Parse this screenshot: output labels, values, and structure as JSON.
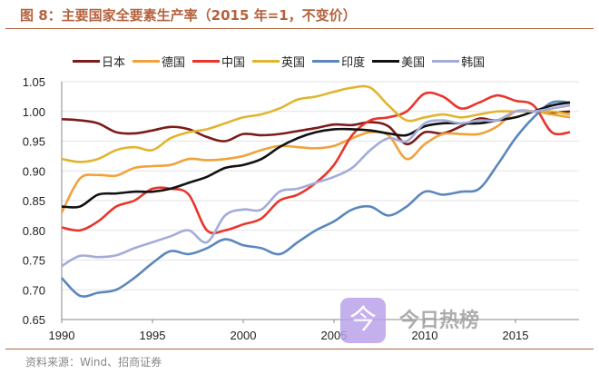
{
  "header": {
    "title": "图 8：主要国家全要素生产率（2015 年=1，不变价）"
  },
  "footer": {
    "source": "资料来源：Wind、招商证券"
  },
  "watermark": {
    "text": "今日热榜",
    "logo_char": "今"
  },
  "chart_data": {
    "type": "line",
    "title": "图 8：主要国家全要素生产率（2015 年=1，不变价）",
    "xlabel": "",
    "ylabel": "",
    "xlim": [
      1990,
      2018.5
    ],
    "ylim": [
      0.65,
      1.05
    ],
    "xticks": [
      "1990",
      "1995",
      "2000",
      "2005",
      "2010",
      "2015"
    ],
    "yticks": [
      "0.65",
      "0.70",
      "0.75",
      "0.80",
      "0.85",
      "0.90",
      "0.95",
      "1.00",
      "1.05"
    ],
    "legend_position": "top",
    "x": [
      1990,
      1991,
      1992,
      1993,
      1994,
      1995,
      1996,
      1997,
      1998,
      1999,
      2000,
      2001,
      2002,
      2003,
      2004,
      2005,
      2006,
      2007,
      2008,
      2009,
      2010,
      2011,
      2012,
      2013,
      2014,
      2015,
      2016,
      2017,
      2018
    ],
    "series": [
      {
        "name": "日本",
        "color": "#7b1c1c",
        "values": [
          0.987,
          0.985,
          0.98,
          0.965,
          0.963,
          0.968,
          0.974,
          0.97,
          0.957,
          0.95,
          0.962,
          0.96,
          0.962,
          0.967,
          0.972,
          0.978,
          0.977,
          0.982,
          0.975,
          0.945,
          0.965,
          0.963,
          0.975,
          0.988,
          0.985,
          1.0,
          1.0,
          0.998,
          1.0
        ]
      },
      {
        "name": "德国",
        "color": "#f0a23c",
        "values": [
          0.83,
          0.887,
          0.893,
          0.892,
          0.905,
          0.908,
          0.91,
          0.92,
          0.918,
          0.92,
          0.925,
          0.935,
          0.942,
          0.94,
          0.938,
          0.942,
          0.955,
          0.965,
          0.96,
          0.92,
          0.945,
          0.962,
          0.962,
          0.962,
          0.975,
          1.0,
          1.0,
          0.995,
          0.99
        ]
      },
      {
        "name": "中国",
        "color": "#e8362b",
        "values": [
          0.805,
          0.8,
          0.815,
          0.84,
          0.85,
          0.87,
          0.87,
          0.86,
          0.8,
          0.8,
          0.81,
          0.82,
          0.85,
          0.86,
          0.88,
          0.91,
          0.96,
          0.985,
          0.99,
          1.0,
          1.03,
          1.025,
          1.005,
          1.015,
          1.027,
          1.018,
          1.01,
          0.965,
          0.965
        ]
      },
      {
        "name": "英国",
        "color": "#e0b530",
        "values": [
          0.92,
          0.915,
          0.92,
          0.935,
          0.94,
          0.935,
          0.955,
          0.965,
          0.97,
          0.98,
          0.99,
          0.995,
          1.005,
          1.02,
          1.025,
          1.033,
          1.04,
          1.04,
          1.01,
          0.985,
          0.99,
          0.995,
          0.99,
          0.995,
          1.0,
          1.0,
          1.0,
          1.0,
          0.995
        ]
      },
      {
        "name": "印度",
        "color": "#5b87bd",
        "values": [
          0.72,
          0.69,
          0.695,
          0.7,
          0.72,
          0.745,
          0.765,
          0.76,
          0.77,
          0.785,
          0.775,
          0.77,
          0.76,
          0.78,
          0.8,
          0.815,
          0.835,
          0.84,
          0.825,
          0.84,
          0.865,
          0.86,
          0.865,
          0.87,
          0.91,
          0.955,
          0.99,
          1.015,
          1.015
        ]
      },
      {
        "name": "美国",
        "color": "#111111",
        "values": [
          0.84,
          0.84,
          0.86,
          0.862,
          0.865,
          0.865,
          0.87,
          0.88,
          0.89,
          0.905,
          0.91,
          0.92,
          0.94,
          0.955,
          0.965,
          0.97,
          0.97,
          0.968,
          0.963,
          0.96,
          0.975,
          0.98,
          0.98,
          0.98,
          0.985,
          0.99,
          1.0,
          1.01,
          1.015
        ]
      },
      {
        "name": "韩国",
        "color": "#a3acd9",
        "values": [
          0.74,
          0.757,
          0.755,
          0.758,
          0.77,
          0.78,
          0.79,
          0.8,
          0.78,
          0.825,
          0.835,
          0.835,
          0.865,
          0.87,
          0.88,
          0.89,
          0.905,
          0.935,
          0.955,
          0.95,
          0.98,
          0.985,
          0.98,
          0.985,
          0.985,
          1.0,
          1.0,
          1.005,
          1.01
        ]
      }
    ]
  }
}
